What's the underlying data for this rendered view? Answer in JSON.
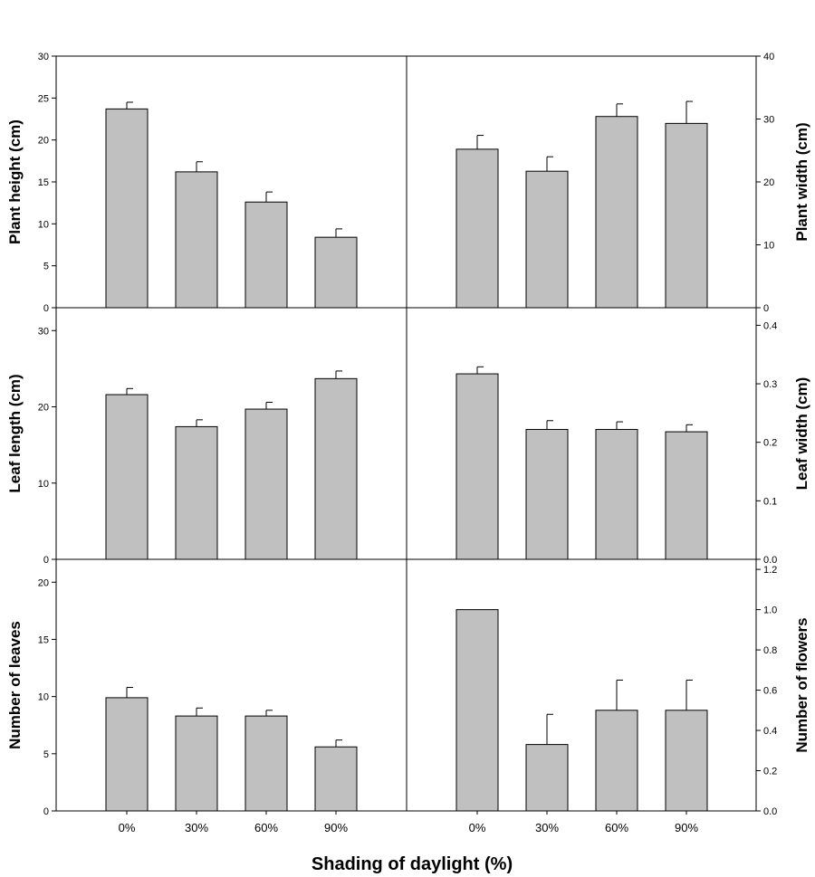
{
  "colors": {
    "bar_fill": "#c0c0c0",
    "bar_stroke": "#000000",
    "axis": "#000000"
  },
  "figure": {
    "xlabel": "Shading of daylight (%)"
  },
  "chart_data": [
    {
      "type": "bar",
      "panel": "top-left",
      "ylabel": "Plant height (cm)",
      "categories": [
        "0%",
        "30%",
        "60%",
        "90%"
      ],
      "show_xticks": false,
      "values": [
        23.7,
        16.2,
        12.6,
        8.4
      ],
      "errors": [
        0.8,
        1.2,
        1.2,
        1.0
      ],
      "ylim": [
        0,
        30
      ],
      "yticks": [
        "0",
        "5",
        "10",
        "15",
        "20",
        "25",
        "30"
      ]
    },
    {
      "type": "bar",
      "panel": "top-right",
      "ylabel": "Plant width (cm)",
      "categories": [
        "0%",
        "30%",
        "60%",
        "90%"
      ],
      "show_xticks": false,
      "values": [
        25.2,
        21.7,
        30.4,
        29.3
      ],
      "errors": [
        2.2,
        2.3,
        2.0,
        3.5
      ],
      "ylim": [
        0,
        40
      ],
      "yticks": [
        "0",
        "10",
        "20",
        "30",
        "40"
      ]
    },
    {
      "type": "bar",
      "panel": "mid-left",
      "ylabel": "Leaf length (cm)",
      "categories": [
        "0%",
        "30%",
        "60%",
        "90%"
      ],
      "show_xticks": false,
      "values": [
        21.6,
        17.4,
        19.7,
        23.7
      ],
      "errors": [
        0.8,
        0.9,
        0.9,
        1.0
      ],
      "ylim": [
        0,
        33
      ],
      "yticks": [
        "0",
        "10",
        "20",
        "30"
      ]
    },
    {
      "type": "bar",
      "panel": "mid-right",
      "ylabel": "Leaf width (cm)",
      "categories": [
        "0%",
        "30%",
        "60%",
        "90%"
      ],
      "show_xticks": false,
      "values": [
        0.317,
        0.222,
        0.222,
        0.218
      ],
      "errors": [
        0.012,
        0.015,
        0.013,
        0.012
      ],
      "ylim": [
        0,
        0.43
      ],
      "yticks": [
        "0.0",
        "0.1",
        "0.2",
        "0.3",
        "0.4"
      ]
    },
    {
      "type": "bar",
      "panel": "bottom-left",
      "ylabel": "Number of  leaves",
      "categories": [
        "0%",
        "30%",
        "60%",
        "90%"
      ],
      "show_xticks": true,
      "values": [
        9.9,
        8.3,
        8.3,
        5.6
      ],
      "errors": [
        0.9,
        0.7,
        0.5,
        0.6
      ],
      "ylim": [
        0,
        22
      ],
      "yticks": [
        "0",
        "5",
        "10",
        "15",
        "20"
      ]
    },
    {
      "type": "bar",
      "panel": "bottom-right",
      "ylabel": "Number of flowers",
      "categories": [
        "0%",
        "30%",
        "60%",
        "90%"
      ],
      "show_xticks": true,
      "values": [
        1.0,
        0.33,
        0.5,
        0.5
      ],
      "errors": [
        0.0,
        0.15,
        0.15,
        0.15
      ],
      "ylim": [
        0,
        1.25
      ],
      "yticks": [
        "0.0",
        "0.2",
        "0.4",
        "0.6",
        "0.8",
        "1.0",
        "1.2"
      ]
    }
  ]
}
